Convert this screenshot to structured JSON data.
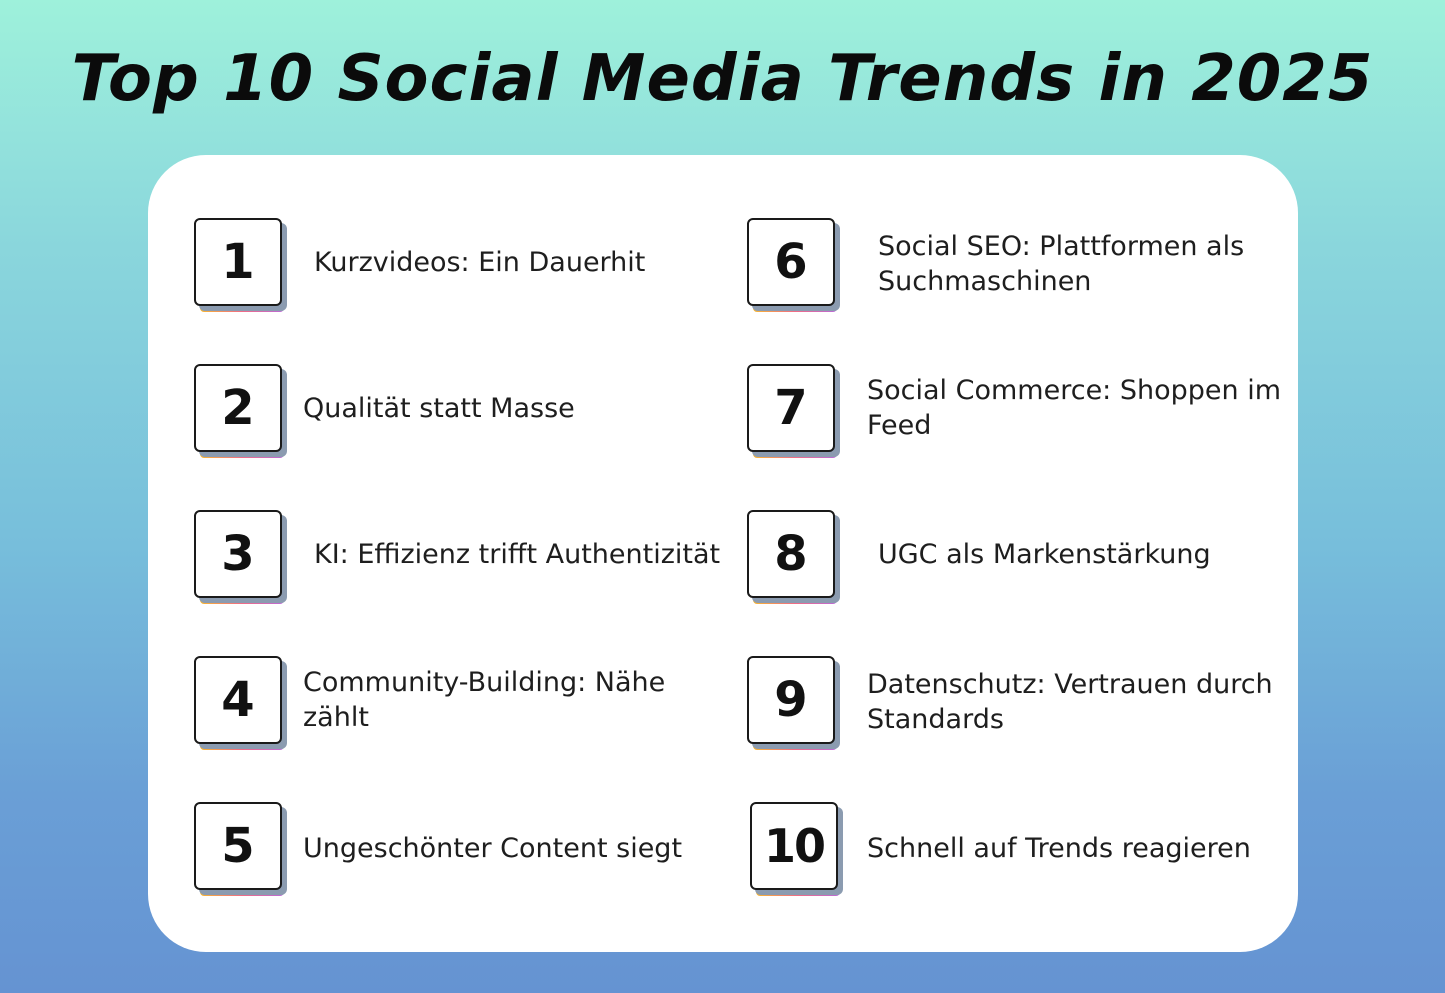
{
  "title": "Top 10 Social Media Trends in 2025",
  "trends": [
    {
      "number": "1",
      "text_lines": [
        "Kurzvideos: Ein Dauerhit"
      ]
    },
    {
      "number": "2",
      "text_lines": [
        "Qualität statt Masse"
      ]
    },
    {
      "number": "3",
      "text_lines": [
        "KI: Effizienz trifft Authentizität"
      ]
    },
    {
      "number": "4",
      "text_lines": [
        "Community-Building: Nähe",
        "zählt"
      ]
    },
    {
      "number": "5",
      "text_lines": [
        "Ungeschönter Content siegt"
      ]
    },
    {
      "number": "6",
      "text_lines": [
        "Social SEO: Plattformen als",
        "Suchmaschinen"
      ]
    },
    {
      "number": "7",
      "text_lines": [
        "Social Commerce: Shoppen im",
        "Feed"
      ]
    },
    {
      "number": "8",
      "text_lines": [
        "UGC als Markenstärkung"
      ]
    },
    {
      "number": "9",
      "text_lines": [
        "Datenschutz: Vertrauen durch",
        "Standards"
      ]
    },
    {
      "number": "10",
      "text_lines": [
        "Schnell auf Trends reagieren"
      ]
    }
  ],
  "colors": {
    "background_top": "#9ef1db",
    "background_bottom": "#6593d2",
    "card": "#ffffff",
    "stripe": [
      "#f7b731",
      "#f06b86",
      "#b86bd8"
    ]
  }
}
